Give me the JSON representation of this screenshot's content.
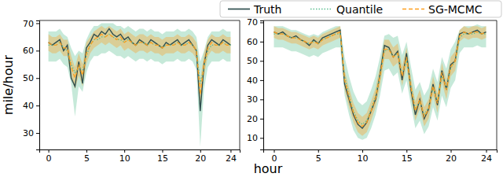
{
  "chart_data": [
    {
      "type": "line",
      "x_label": "hour",
      "y_label": "mile/hour",
      "legend": "top right",
      "x": [
        0,
        0.5,
        1,
        1.5,
        2,
        2.5,
        3,
        3.5,
        4,
        4.5,
        5,
        5.5,
        6,
        6.5,
        7,
        7.5,
        8,
        8.5,
        9,
        9.5,
        10,
        10.5,
        11,
        11.5,
        12,
        12.5,
        13,
        13.5,
        14,
        14.5,
        15,
        15.5,
        16,
        16.5,
        17,
        17.5,
        18,
        18.5,
        19,
        19.5,
        20,
        20.5,
        21,
        21.5,
        22,
        22.5,
        23,
        23.5,
        24
      ],
      "xlim": [
        -1.2,
        25.2
      ],
      "xticks": [
        0,
        5,
        10,
        15,
        20,
        24
      ],
      "ylim": [
        24,
        71
      ],
      "yticks": [
        30,
        40,
        50,
        60,
        70
      ],
      "series": [
        {
          "name": "Truth",
          "color": "#2f4f4f",
          "line_style": "solid",
          "values": [
            63,
            62,
            63,
            64,
            60,
            62,
            50,
            47,
            56,
            48,
            61,
            63,
            66,
            65,
            67,
            66,
            68,
            66,
            65,
            66,
            64,
            65,
            63,
            62,
            64,
            63,
            62,
            64,
            63,
            62,
            61,
            63,
            62,
            63,
            64,
            62,
            63,
            64,
            62,
            60,
            38,
            55,
            62,
            64,
            63,
            62,
            64,
            63,
            62
          ]
        },
        {
          "name": "Quantile",
          "color": "#5cbf91",
          "line_style": "dotted",
          "values": [
            62,
            62,
            62,
            63,
            61,
            60,
            55,
            52,
            54,
            53,
            58,
            62,
            64,
            64,
            65,
            65,
            66,
            65,
            64,
            64,
            63,
            64,
            63,
            62,
            63,
            63,
            62,
            63,
            62,
            62,
            61,
            62,
            62,
            62,
            63,
            62,
            62,
            63,
            62,
            60,
            48,
            54,
            60,
            62,
            62,
            62,
            63,
            62,
            62
          ],
          "lower": [
            56,
            56,
            56,
            57,
            55,
            54,
            48,
            36,
            47,
            45,
            52,
            56,
            58,
            58,
            59,
            59,
            60,
            59,
            58,
            58,
            57,
            58,
            57,
            56,
            57,
            57,
            56,
            57,
            56,
            56,
            55,
            56,
            56,
            56,
            57,
            56,
            56,
            57,
            56,
            53,
            25,
            46,
            54,
            56,
            56,
            56,
            57,
            56,
            56
          ],
          "upper": [
            67,
            67,
            67,
            68,
            66,
            65,
            61,
            58,
            60,
            59,
            64,
            67,
            69,
            69,
            70,
            70,
            70,
            70,
            69,
            69,
            68,
            69,
            68,
            67,
            68,
            68,
            67,
            68,
            67,
            67,
            66,
            67,
            67,
            67,
            68,
            67,
            67,
            68,
            67,
            65,
            56,
            60,
            65,
            67,
            67,
            67,
            68,
            67,
            67
          ]
        },
        {
          "name": "SG-MCMC",
          "color": "#ff9f1c",
          "line_style": "dashed",
          "values": [
            63,
            62,
            62,
            63,
            61,
            61,
            54,
            50,
            55,
            51,
            59,
            62,
            64,
            65,
            66,
            65,
            66,
            65,
            64,
            65,
            63,
            64,
            63,
            62,
            63,
            63,
            62,
            63,
            62,
            62,
            61,
            62,
            62,
            62,
            63,
            62,
            62,
            63,
            62,
            60,
            44,
            55,
            61,
            63,
            62,
            62,
            63,
            62,
            62
          ],
          "lower": [
            60,
            59,
            59,
            60,
            58,
            58,
            50,
            46,
            51,
            47,
            55,
            59,
            61,
            62,
            63,
            62,
            63,
            62,
            61,
            62,
            60,
            61,
            60,
            59,
            60,
            60,
            59,
            60,
            59,
            59,
            58,
            59,
            59,
            59,
            60,
            59,
            59,
            60,
            59,
            57,
            39,
            51,
            58,
            60,
            59,
            59,
            60,
            59,
            59
          ],
          "upper": [
            66,
            65,
            65,
            66,
            64,
            64,
            58,
            54,
            59,
            55,
            63,
            65,
            67,
            68,
            69,
            68,
            69,
            68,
            67,
            68,
            66,
            67,
            66,
            65,
            66,
            66,
            65,
            66,
            65,
            65,
            64,
            65,
            65,
            65,
            66,
            65,
            65,
            66,
            65,
            63,
            49,
            59,
            64,
            66,
            65,
            65,
            66,
            65,
            65
          ]
        }
      ]
    },
    {
      "type": "line",
      "x": [
        0,
        0.5,
        1,
        1.5,
        2,
        2.5,
        3,
        3.5,
        4,
        4.5,
        5,
        5.5,
        6,
        6.5,
        7,
        7.5,
        8,
        8.5,
        9,
        9.5,
        10,
        10.5,
        11,
        11.5,
        12,
        12.5,
        13,
        13.5,
        14,
        14.5,
        15,
        15.5,
        16,
        16.5,
        17,
        17.5,
        18,
        18.5,
        19,
        19.5,
        20,
        20.5,
        21,
        21.5,
        22,
        22.5,
        23,
        23.5,
        24
      ],
      "xlim": [
        -1.2,
        25.2
      ],
      "xticks": [
        0,
        5,
        10,
        15,
        20,
        24
      ],
      "ylim": [
        4,
        71
      ],
      "yticks": [
        10,
        20,
        30,
        40,
        50,
        60,
        70
      ],
      "series": [
        {
          "color": "#2f4f4f",
          "line_style": "solid",
          "values": [
            65,
            64,
            65,
            63,
            62,
            63,
            61,
            60,
            58,
            61,
            59,
            62,
            63,
            64,
            65,
            66,
            38,
            30,
            22,
            17,
            15,
            18,
            24,
            30,
            43,
            58,
            57,
            52,
            55,
            40,
            54,
            35,
            22,
            30,
            20,
            25,
            38,
            27,
            45,
            35,
            48,
            50,
            64,
            65,
            64,
            65,
            66,
            64,
            65
          ]
        },
        {
          "color": "#5cbf91",
          "line_style": "dotted",
          "values": [
            64,
            64,
            64,
            63,
            62,
            62,
            61,
            60,
            59,
            60,
            59,
            61,
            62,
            63,
            64,
            64,
            42,
            32,
            24,
            19,
            17,
            19,
            25,
            32,
            42,
            55,
            56,
            52,
            54,
            43,
            50,
            37,
            25,
            29,
            22,
            26,
            36,
            29,
            42,
            36,
            46,
            50,
            62,
            64,
            64,
            64,
            65,
            64,
            64
          ],
          "lower": [
            57,
            57,
            57,
            56,
            55,
            55,
            54,
            53,
            52,
            53,
            52,
            54,
            55,
            56,
            57,
            57,
            32,
            22,
            14,
            10,
            9,
            10,
            15,
            22,
            32,
            45,
            46,
            42,
            44,
            33,
            40,
            27,
            15,
            19,
            12,
            16,
            26,
            19,
            32,
            26,
            36,
            40,
            54,
            57,
            57,
            57,
            58,
            57,
            57
          ],
          "upper": [
            68,
            68,
            68,
            67,
            66,
            66,
            65,
            64,
            63,
            64,
            63,
            65,
            66,
            67,
            68,
            68,
            52,
            42,
            34,
            29,
            27,
            29,
            35,
            42,
            52,
            63,
            64,
            62,
            63,
            53,
            60,
            47,
            35,
            39,
            32,
            36,
            46,
            39,
            52,
            46,
            56,
            60,
            66,
            68,
            68,
            68,
            69,
            68,
            68
          ]
        },
        {
          "color": "#ff9f1c",
          "line_style": "dashed",
          "values": [
            65,
            64,
            64,
            63,
            62,
            62,
            61,
            60,
            59,
            60,
            59,
            61,
            62,
            63,
            64,
            65,
            40,
            31,
            23,
            18,
            16,
            18,
            24,
            31,
            42,
            56,
            56,
            52,
            54,
            42,
            52,
            36,
            24,
            30,
            21,
            25,
            37,
            28,
            44,
            35,
            47,
            50,
            63,
            65,
            64,
            65,
            65,
            64,
            65
          ],
          "lower": [
            62,
            61,
            61,
            60,
            59,
            59,
            58,
            57,
            56,
            57,
            56,
            58,
            59,
            60,
            61,
            62,
            35,
            26,
            18,
            13,
            11,
            13,
            19,
            26,
            37,
            51,
            51,
            47,
            49,
            37,
            47,
            31,
            19,
            25,
            16,
            20,
            32,
            23,
            39,
            30,
            42,
            45,
            60,
            62,
            61,
            62,
            62,
            61,
            62
          ],
          "upper": [
            68,
            67,
            67,
            66,
            65,
            65,
            64,
            63,
            62,
            63,
            62,
            64,
            65,
            66,
            67,
            68,
            45,
            36,
            28,
            23,
            21,
            23,
            29,
            36,
            47,
            61,
            61,
            57,
            59,
            47,
            57,
            41,
            29,
            35,
            26,
            30,
            42,
            33,
            49,
            40,
            52,
            55,
            66,
            68,
            67,
            68,
            68,
            67,
            68
          ]
        }
      ]
    }
  ]
}
